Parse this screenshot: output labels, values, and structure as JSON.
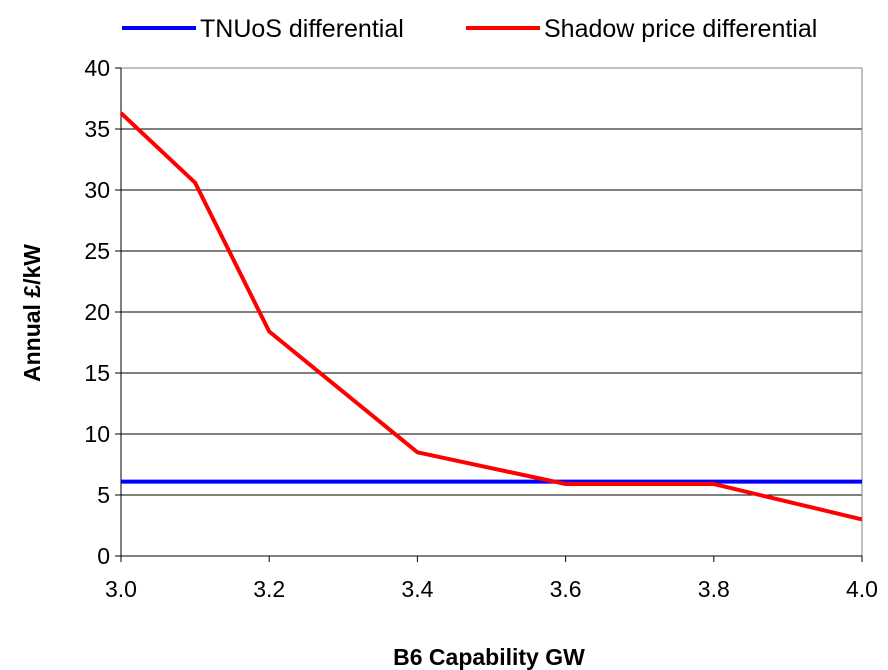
{
  "chart_data": {
    "type": "line",
    "xlabel": "B6 Capability GW",
    "ylabel": "Annual £/kW",
    "xlim": [
      3.0,
      4.0
    ],
    "ylim": [
      0,
      40
    ],
    "x_ticks": [
      "3.0",
      "3.2",
      "3.4",
      "3.6",
      "3.8",
      "4.0"
    ],
    "y_ticks": [
      "0",
      "5",
      "10",
      "15",
      "20",
      "25",
      "30",
      "35",
      "40"
    ],
    "grid": "horizontal",
    "legend_position": "top",
    "series": [
      {
        "name": "TNUoS differential",
        "color": "#0000ff",
        "points": [
          [
            3.0,
            6.1
          ],
          [
            3.1,
            6.1
          ],
          [
            3.2,
            6.1
          ],
          [
            3.4,
            6.1
          ],
          [
            3.6,
            6.1
          ],
          [
            3.8,
            6.1
          ],
          [
            4.0,
            6.1
          ]
        ]
      },
      {
        "name": "Shadow price differential",
        "color": "#ff0000",
        "points": [
          [
            3.0,
            36.3
          ],
          [
            3.1,
            30.6
          ],
          [
            3.2,
            18.4
          ],
          [
            3.4,
            8.5
          ],
          [
            3.6,
            5.9
          ],
          [
            3.8,
            5.9
          ],
          [
            4.0,
            3.0
          ]
        ]
      }
    ]
  }
}
